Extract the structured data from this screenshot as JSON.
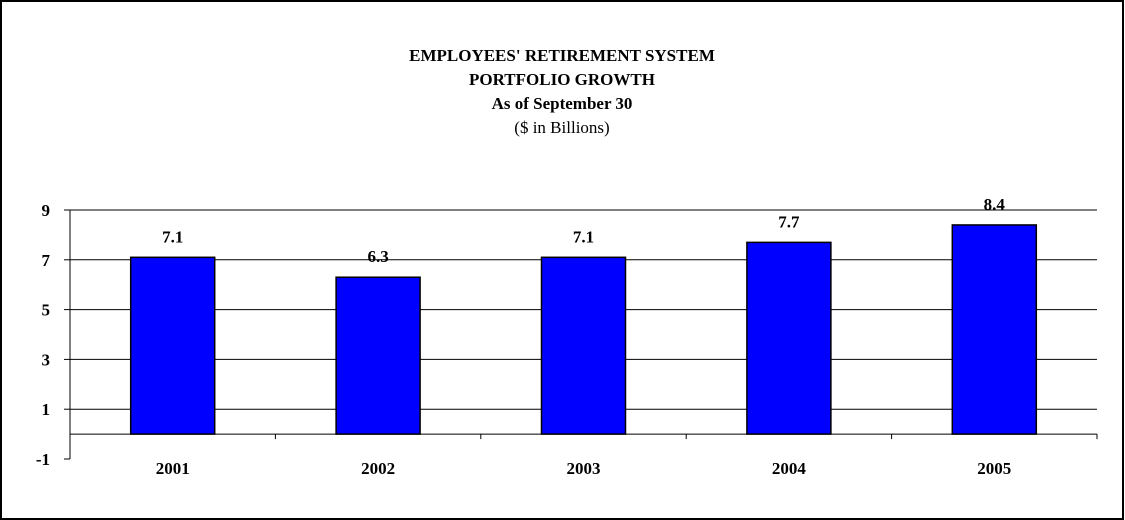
{
  "chart_data": {
    "type": "bar",
    "title_lines": [
      "EMPLOYEES' RETIREMENT SYSTEM",
      "PORTFOLIO GROWTH",
      "As of September 30"
    ],
    "subtitle": "($ in Billions)",
    "categories": [
      "2001",
      "2002",
      "2003",
      "2004",
      "2005"
    ],
    "values": [
      7.1,
      6.3,
      7.1,
      7.7,
      8.4
    ],
    "data_labels": [
      "7.1",
      "6.3",
      "7.1",
      "7.7",
      "8.4"
    ],
    "y_ticks": [
      9,
      7,
      5,
      3,
      1,
      -1
    ],
    "ylim": [
      -1,
      9
    ],
    "grid": true,
    "bar_color": "#0000ff",
    "xlabel": "",
    "ylabel": ""
  }
}
